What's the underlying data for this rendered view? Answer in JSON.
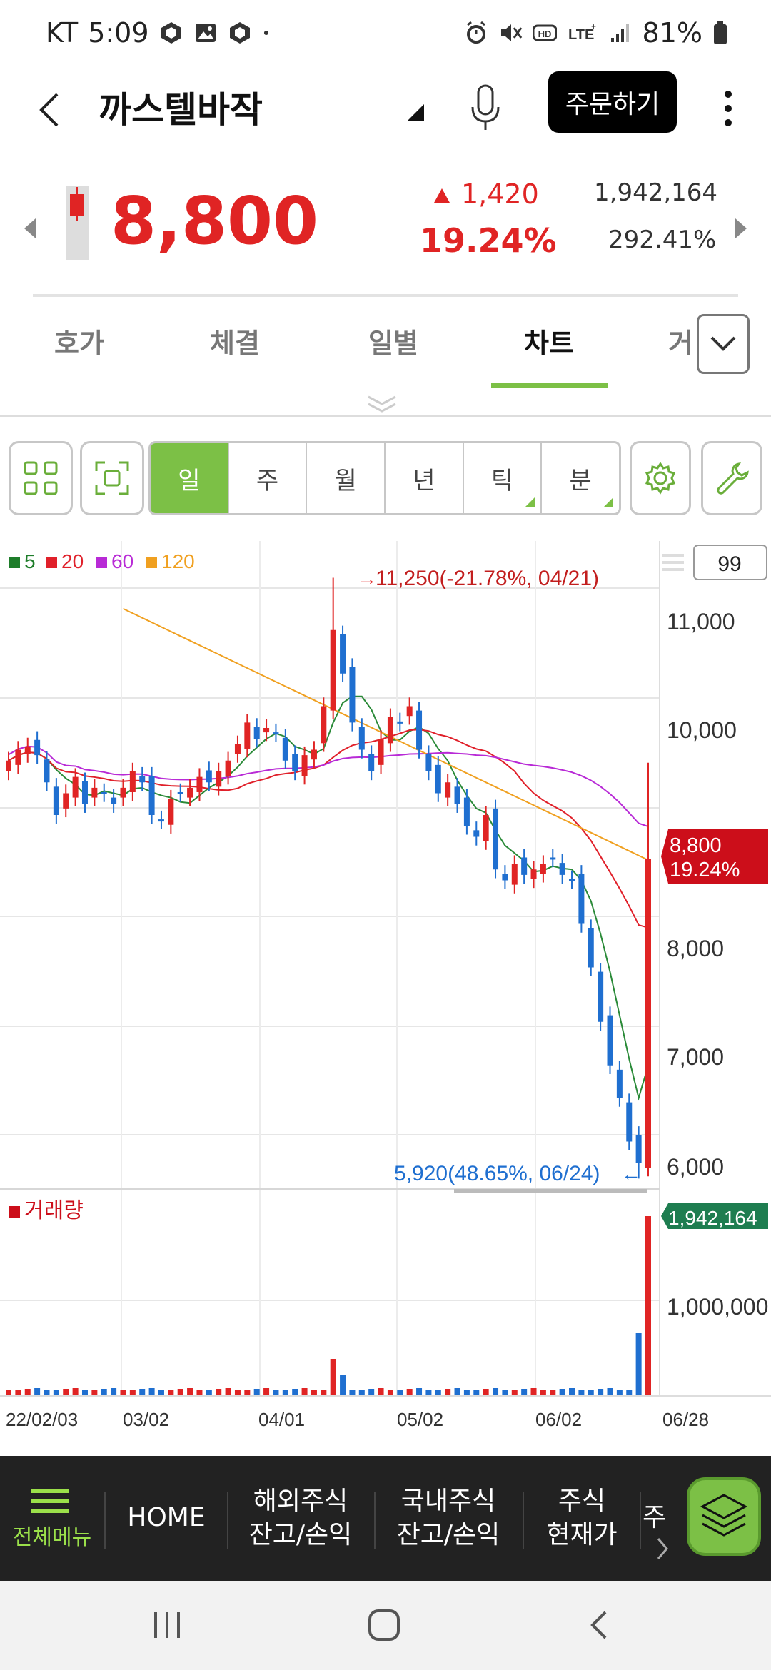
{
  "status_bar": {
    "carrier": "KT",
    "time": "5:09",
    "battery": "81%"
  },
  "header": {
    "title": "까스텔바작",
    "order_button": "주문하기"
  },
  "price_panel": {
    "price": "8,800",
    "change": "1,420",
    "change_rate": "19.24%",
    "volume": "1,942,164",
    "volume_ratio": "292.41%"
  },
  "tabs": [
    {
      "label": "호가"
    },
    {
      "label": "체결"
    },
    {
      "label": "일별"
    },
    {
      "label": "차트"
    },
    {
      "label": "거"
    }
  ],
  "toolbar": {
    "periods": [
      "일",
      "주",
      "월",
      "년",
      "틱",
      "분"
    ],
    "active_period": "일"
  },
  "chart": {
    "legend": [
      {
        "label": "5",
        "color": "#1e7d2a"
      },
      {
        "label": "20",
        "color": "#e0202a"
      },
      {
        "label": "60",
        "color": "#b82ad6"
      },
      {
        "label": "120",
        "color": "#f0a020"
      }
    ],
    "high_annotation": "11,250(-21.78%, 04/21)",
    "low_annotation": "5,920(48.65%, 06/24)",
    "count_box": "99",
    "price_axis": [
      "11,000",
      "10,000",
      "8,000",
      "7,000",
      "6,000"
    ],
    "current_price_label": "8,800",
    "current_rate_label": "19.24%",
    "volume_title": "거래량",
    "volume_axis": [
      "1,000,000"
    ],
    "volume_current_label": "1,942,164",
    "date_axis": [
      "22/02/03",
      "03/02",
      "04/01",
      "05/02",
      "06/02",
      "06/28"
    ]
  },
  "bottom_nav": {
    "menu": "전체메뉴",
    "items": [
      {
        "line1": "HOME",
        "line2": ""
      },
      {
        "line1": "해외주식",
        "line2": "잔고/손익"
      },
      {
        "line1": "국내주식",
        "line2": "잔고/손익"
      },
      {
        "line1": "주식",
        "line2": "현재가"
      },
      {
        "line1": "주",
        "line2": ""
      }
    ]
  },
  "colors": {
    "accent": "#7cc046",
    "up": "#e02424",
    "down": "#1f6fd0"
  }
}
